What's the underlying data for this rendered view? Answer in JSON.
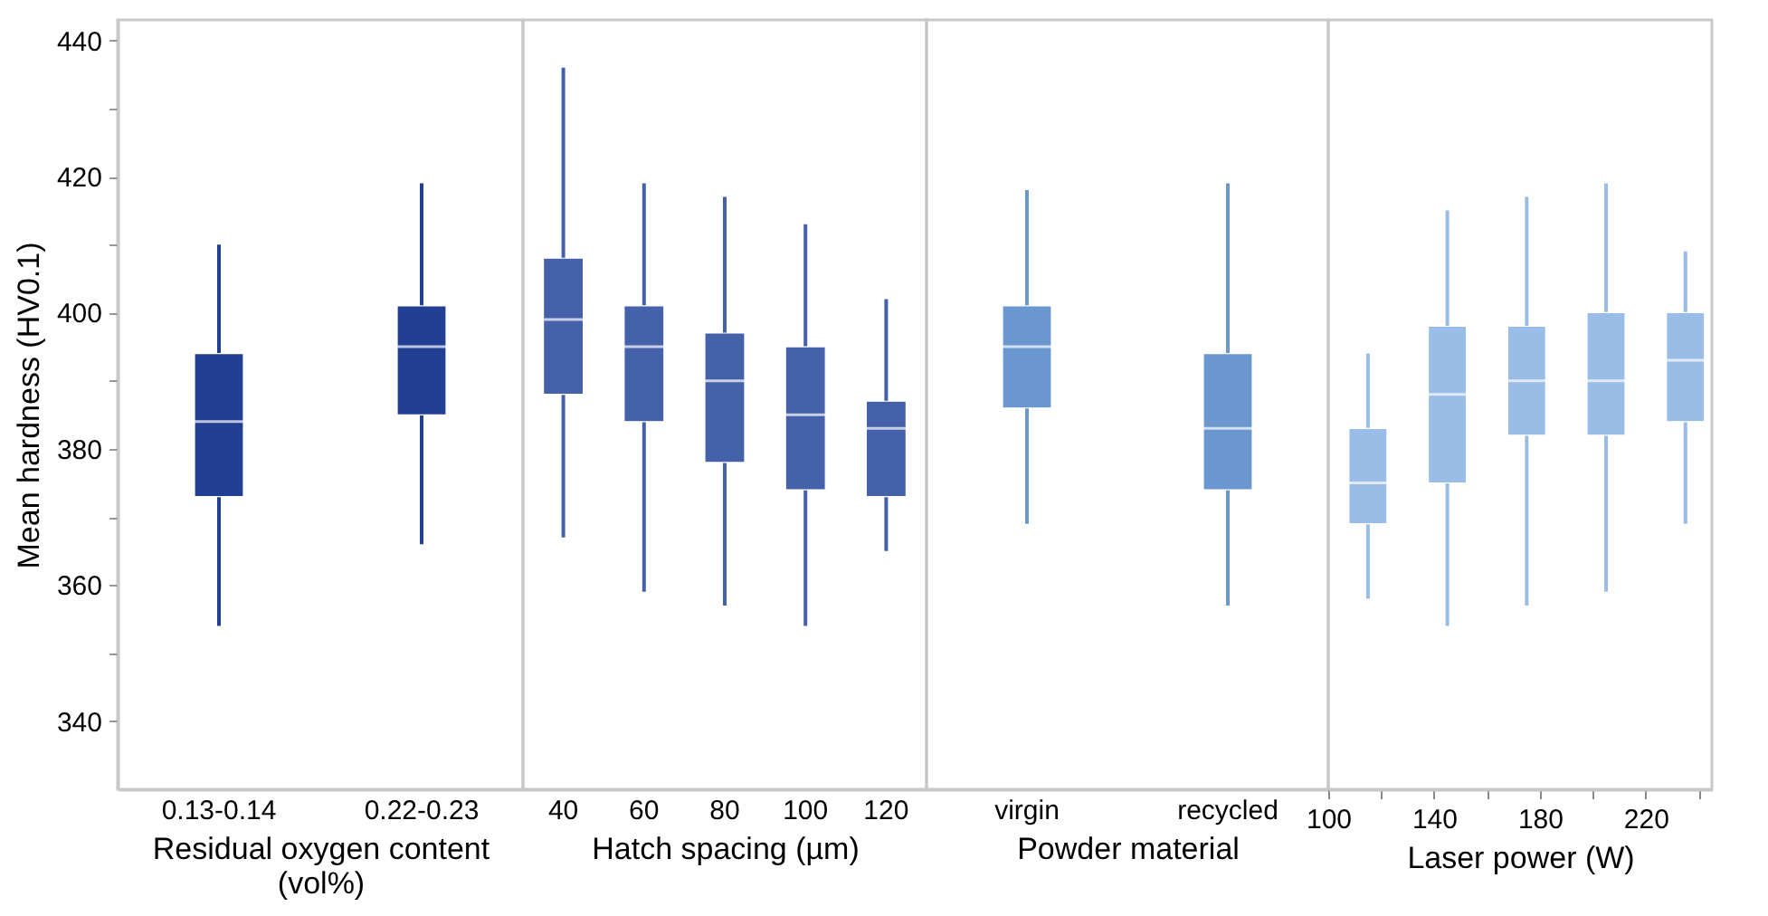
{
  "chart_data": [
    {
      "type": "box",
      "ylabel": "Mean hardness (HV0.1)",
      "xlabel": "Residual oxygen content (vol%)",
      "categories": [
        "0.13-0.14",
        "0.22-0.23"
      ],
      "color": "#233f93",
      "boxes": [
        {
          "low": 354,
          "q1": 373,
          "median": 384,
          "q3": 394,
          "high": 410
        },
        {
          "low": 366,
          "q1": 385,
          "median": 395,
          "q3": 401,
          "high": 419
        }
      ],
      "ylim": [
        330,
        443
      ],
      "yticks": [
        340,
        {
          "value": 350,
          "label": null
        },
        360,
        {
          "value": 370,
          "label": null
        },
        380,
        {
          "value": 390,
          "label": null
        },
        400,
        {
          "value": 410,
          "label": null
        },
        420,
        {
          "value": 430,
          "label": null
        },
        440
      ]
    },
    {
      "type": "box",
      "xlabel": "Hatch spacing (µm)",
      "categories": [
        "40",
        "60",
        "80",
        "100",
        "120"
      ],
      "color": "#4561a9",
      "tick_labels": "x",
      "boxes": [
        {
          "low": 367,
          "q1": 388,
          "median": 399,
          "q3": 408,
          "high": 436
        },
        {
          "low": 359,
          "q1": 384,
          "median": 395,
          "q3": 401,
          "high": 419
        },
        {
          "low": 357,
          "q1": 378,
          "median": 390,
          "q3": 397,
          "high": 417
        },
        {
          "low": 354,
          "q1": 374,
          "median": 385,
          "q3": 395,
          "high": 413
        },
        {
          "low": 365,
          "q1": 373,
          "median": 383,
          "q3": 387,
          "high": 402
        }
      ],
      "ylim": [
        330,
        443
      ]
    },
    {
      "type": "box",
      "xlabel": "Powder material",
      "categories": [
        "virgin",
        "recycled"
      ],
      "color": "#6b97cf",
      "tick_labels": "x",
      "boxes": [
        {
          "low": 369,
          "q1": 386,
          "median": 395,
          "q3": 401,
          "high": 418
        },
        {
          "low": 357,
          "q1": 374,
          "median": 383,
          "q3": 394,
          "high": 419
        }
      ],
      "ylim": [
        330,
        443
      ]
    },
    {
      "type": "box",
      "xlabel": "Laser power (W)",
      "x": [
        115,
        145,
        175,
        205,
        235
      ],
      "color": "#99bde6",
      "tick_labels": "x",
      "boxes": [
        {
          "low": 358,
          "q1": 369,
          "median": 375,
          "q3": 383,
          "high": 394
        },
        {
          "low": 354,
          "q1": 375,
          "median": 388,
          "q3": 398,
          "high": 415
        },
        {
          "low": 357,
          "q1": 382,
          "median": 390,
          "q3": 398,
          "high": 417
        },
        {
          "low": 359,
          "q1": 382,
          "median": 390,
          "q3": 400,
          "high": 419
        },
        {
          "low": 369,
          "q1": 384,
          "median": 393,
          "q3": 400,
          "high": 409
        }
      ],
      "xlim": [
        100,
        245
      ],
      "xticks": [
        100,
        {
          "value": 120,
          "label": null
        },
        140,
        {
          "value": 160,
          "label": null
        },
        180,
        {
          "value": 200,
          "label": null
        },
        220,
        {
          "value": 240,
          "label": null
        }
      ],
      "ylim": [
        330,
        443
      ]
    }
  ]
}
